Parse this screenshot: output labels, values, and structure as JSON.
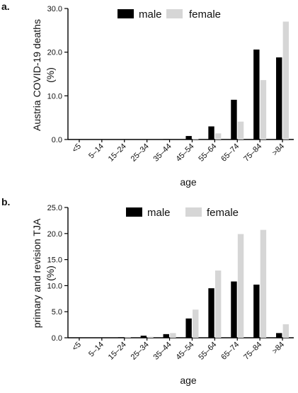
{
  "colors": {
    "male": "#000000",
    "female": "#d6d6d6",
    "axis": "#000000",
    "background": "#ffffff"
  },
  "chart_data": [
    {
      "panel_label": "a.",
      "type": "bar",
      "ylabel": "Austria COVID-19 deaths",
      "ylabel_unit": "(%)",
      "xlabel": "age",
      "ylim": [
        0,
        30
      ],
      "yticks": [
        "0.0",
        "10.0",
        "20.0",
        "30.0"
      ],
      "grid": false,
      "legend_placement": "top",
      "categories": [
        "<5",
        "5–14",
        "15–24",
        "25–34",
        "35–44",
        "45–54",
        "55–64",
        "65–74",
        "75–84",
        ">84"
      ],
      "series": [
        {
          "name": "male",
          "values": [
            0.0,
            0.0,
            0.0,
            0.0,
            0.1,
            0.8,
            3.0,
            9.1,
            20.6,
            18.8
          ]
        },
        {
          "name": "female",
          "values": [
            0.0,
            0.0,
            0.0,
            0.0,
            0.0,
            0.2,
            1.4,
            4.1,
            13.6,
            27.0
          ]
        }
      ]
    },
    {
      "panel_label": "b.",
      "type": "bar",
      "ylabel": "primary and revision TJA",
      "ylabel_unit": "(%)",
      "xlabel": "age",
      "ylim": [
        0,
        25
      ],
      "yticks": [
        "0.0",
        "5.0",
        "10.0",
        "15.0",
        "20.0",
        "25.0"
      ],
      "grid": false,
      "legend_placement": "top",
      "categories": [
        "<5",
        "5–14",
        "15–24",
        "25–34",
        "35–44",
        "45–54",
        "55–64",
        "65–74",
        "75–84",
        ">84"
      ],
      "series": [
        {
          "name": "male",
          "values": [
            0.0,
            0.0,
            0.1,
            0.4,
            0.7,
            3.7,
            9.5,
            10.8,
            10.2,
            0.9
          ]
        },
        {
          "name": "female",
          "values": [
            0.0,
            0.0,
            0.1,
            0.2,
            0.9,
            5.4,
            12.9,
            19.9,
            20.7,
            2.6
          ]
        }
      ]
    }
  ]
}
